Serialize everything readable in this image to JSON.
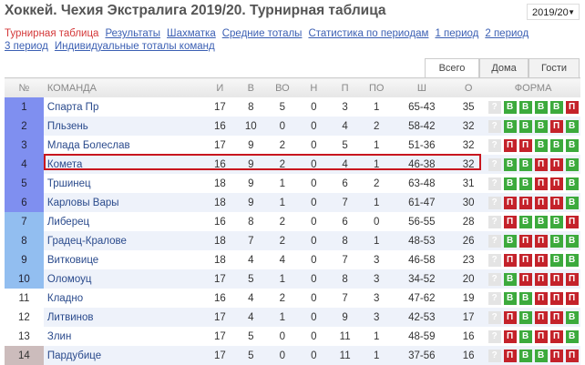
{
  "header": {
    "title": "Хоккей. Чехия Экстралига 2019/20. Турнирная таблица",
    "season": "2019/20"
  },
  "nav": [
    "Турнирная таблица",
    "Результаты",
    "Шахматка",
    "Средние тоталы",
    "Статистика по периодам",
    "1 период",
    "2 период",
    "3 период",
    "Индивидуальные тоталы команд"
  ],
  "tabs": [
    "Всего",
    "Дома",
    "Гости"
  ],
  "columns": [
    "№",
    "КОМАНДА",
    "И",
    "В",
    "ВО",
    "Н",
    "П",
    "ПО",
    "Ш",
    "О",
    "ФОРМА"
  ],
  "colors": {
    "win": "#3caa3c",
    "loss": "#c4222a",
    "zone1": "#7f8ff0",
    "zone2": "#92bef0",
    "zone4": "#ccbcbc",
    "highlight": "#c8161e"
  },
  "rows": [
    {
      "n": "1",
      "team": "Спарта Пр",
      "i": "17",
      "v": "8",
      "vo": "5",
      "nn": "0",
      "p": "3",
      "po": "1",
      "sh": "65-43",
      "o": "35",
      "form": [
        "?",
        "В",
        "В",
        "В",
        "В",
        "П"
      ],
      "zone": 1
    },
    {
      "n": "2",
      "team": "Пльзень",
      "i": "16",
      "v": "10",
      "vo": "0",
      "nn": "0",
      "p": "4",
      "po": "2",
      "sh": "58-42",
      "o": "32",
      "form": [
        "?",
        "В",
        "В",
        "В",
        "П",
        "В"
      ],
      "zone": 1
    },
    {
      "n": "3",
      "team": "Млада Болеслав",
      "i": "17",
      "v": "9",
      "vo": "2",
      "nn": "0",
      "p": "5",
      "po": "1",
      "sh": "51-36",
      "o": "32",
      "form": [
        "?",
        "П",
        "П",
        "В",
        "В",
        "В"
      ],
      "zone": 1
    },
    {
      "n": "4",
      "team": "Комета",
      "i": "16",
      "v": "9",
      "vo": "2",
      "nn": "0",
      "p": "4",
      "po": "1",
      "sh": "46-38",
      "o": "32",
      "form": [
        "?",
        "В",
        "В",
        "П",
        "П",
        "В"
      ],
      "zone": 1
    },
    {
      "n": "5",
      "team": "Тршинец",
      "i": "18",
      "v": "9",
      "vo": "1",
      "nn": "0",
      "p": "6",
      "po": "2",
      "sh": "63-48",
      "o": "31",
      "form": [
        "?",
        "В",
        "В",
        "П",
        "П",
        "В"
      ],
      "zone": 1
    },
    {
      "n": "6",
      "team": "Карловы Вары",
      "i": "18",
      "v": "9",
      "vo": "1",
      "nn": "0",
      "p": "7",
      "po": "1",
      "sh": "61-47",
      "o": "30",
      "form": [
        "?",
        "П",
        "П",
        "П",
        "П",
        "В"
      ],
      "zone": 1
    },
    {
      "n": "7",
      "team": "Либерец",
      "i": "16",
      "v": "8",
      "vo": "2",
      "nn": "0",
      "p": "6",
      "po": "0",
      "sh": "56-55",
      "o": "28",
      "form": [
        "?",
        "П",
        "В",
        "В",
        "В",
        "П"
      ],
      "zone": 2
    },
    {
      "n": "8",
      "team": "Градец-Кралове",
      "i": "18",
      "v": "7",
      "vo": "2",
      "nn": "0",
      "p": "8",
      "po": "1",
      "sh": "48-53",
      "o": "26",
      "form": [
        "?",
        "В",
        "П",
        "П",
        "В",
        "В"
      ],
      "zone": 2
    },
    {
      "n": "9",
      "team": "Витковице",
      "i": "18",
      "v": "4",
      "vo": "4",
      "nn": "0",
      "p": "7",
      "po": "3",
      "sh": "46-58",
      "o": "23",
      "form": [
        "?",
        "П",
        "П",
        "П",
        "В",
        "В"
      ],
      "zone": 2
    },
    {
      "n": "10",
      "team": "Оломоуц",
      "i": "17",
      "v": "5",
      "vo": "1",
      "nn": "0",
      "p": "8",
      "po": "3",
      "sh": "34-52",
      "o": "20",
      "form": [
        "?",
        "В",
        "П",
        "П",
        "П",
        "П"
      ],
      "zone": 2
    },
    {
      "n": "11",
      "team": "Кладно",
      "i": "16",
      "v": "4",
      "vo": "2",
      "nn": "0",
      "p": "7",
      "po": "3",
      "sh": "47-62",
      "o": "19",
      "form": [
        "?",
        "В",
        "В",
        "П",
        "П",
        "П"
      ],
      "zone": 3
    },
    {
      "n": "12",
      "team": "Литвинов",
      "i": "17",
      "v": "4",
      "vo": "1",
      "nn": "0",
      "p": "9",
      "po": "3",
      "sh": "42-53",
      "o": "17",
      "form": [
        "?",
        "П",
        "В",
        "П",
        "П",
        "В"
      ],
      "zone": 3
    },
    {
      "n": "13",
      "team": "Злин",
      "i": "17",
      "v": "5",
      "vo": "0",
      "nn": "0",
      "p": "11",
      "po": "1",
      "sh": "48-59",
      "o": "16",
      "form": [
        "?",
        "П",
        "В",
        "П",
        "П",
        "В"
      ],
      "zone": 3
    },
    {
      "n": "14",
      "team": "Пардубице",
      "i": "17",
      "v": "5",
      "vo": "0",
      "nn": "0",
      "p": "11",
      "po": "1",
      "sh": "37-56",
      "o": "16",
      "form": [
        "?",
        "П",
        "В",
        "В",
        "П",
        "П"
      ],
      "zone": 4
    }
  ]
}
